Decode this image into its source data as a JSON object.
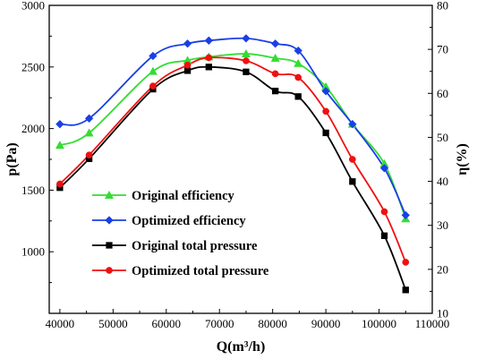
{
  "chart_data": {
    "type": "line",
    "title": "",
    "xlabel": "Q(m³/h)",
    "ylabel_left": "p(Pa)",
    "ylabel_right": "η(%)",
    "xlim": [
      38000,
      110000
    ],
    "ylim_left": [
      500,
      3000
    ],
    "ylim_right": [
      10,
      80
    ],
    "x_ticks": [
      40000,
      50000,
      60000,
      70000,
      80000,
      90000,
      100000,
      110000
    ],
    "y_left_ticks": [
      1000,
      1500,
      2000,
      2500,
      3000
    ],
    "y_right_ticks": [
      10,
      20,
      30,
      40,
      50,
      60,
      70,
      80
    ],
    "legend_position": "lower-left",
    "grid": false,
    "series": [
      {
        "name": "Original efficiency",
        "axis": "right",
        "color": "#33dd33",
        "marker": "triangle",
        "x": [
          40000,
          45500,
          57500,
          64000,
          68000,
          75000,
          80500,
          84800,
          90000,
          95000,
          101000,
          105000
        ],
        "y": [
          48.2,
          51.0,
          65.0,
          67.5,
          68.3,
          69.0,
          68.0,
          66.8,
          61.5,
          53.0,
          44.0,
          31.5
        ]
      },
      {
        "name": "Optimized efficiency",
        "axis": "right",
        "color": "#1a3fe6",
        "marker": "diamond",
        "x": [
          40000,
          45500,
          57500,
          64000,
          68000,
          75000,
          80500,
          84800,
          90000,
          95000,
          101000,
          105000
        ],
        "y": [
          53.0,
          54.3,
          68.5,
          71.3,
          72.0,
          72.5,
          71.3,
          69.7,
          60.5,
          53.0,
          43.0,
          32.3
        ]
      },
      {
        "name": "Original total pressure",
        "axis": "left",
        "color": "#000000",
        "marker": "square",
        "x": [
          40000,
          45500,
          57500,
          64000,
          68000,
          75000,
          80500,
          84800,
          90000,
          95000,
          101000,
          105000
        ],
        "y": [
          1520,
          1755,
          2320,
          2470,
          2500,
          2460,
          2305,
          2260,
          1965,
          1570,
          1130,
          690
        ]
      },
      {
        "name": "Optimized total pressure",
        "axis": "left",
        "color": "#ee1111",
        "marker": "circle",
        "x": [
          40000,
          45500,
          57500,
          64000,
          68000,
          75000,
          80500,
          84800,
          90000,
          95000,
          101000,
          105000
        ],
        "y": [
          1550,
          1785,
          2345,
          2515,
          2575,
          2550,
          2445,
          2415,
          2140,
          1750,
          1325,
          915
        ]
      }
    ]
  }
}
